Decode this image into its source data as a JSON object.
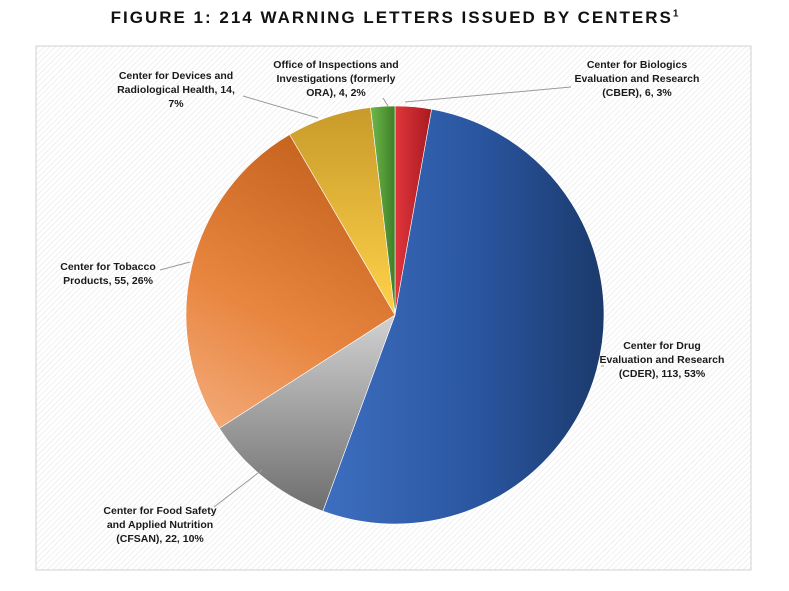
{
  "title": "FIGURE 1: 214 WARNING LETTERS ISSUED BY CENTERS",
  "title_footnote": "1",
  "chart_data": {
    "type": "pie",
    "total": 214,
    "slices": [
      {
        "name": "Center for Biologics Evaluation and Research (CBER)",
        "value": 6,
        "percent": 3,
        "label_lines": [
          "Center for Biologics",
          "Evaluation and Research",
          "(CBER), 6, 3%"
        ],
        "color": "#c8222a"
      },
      {
        "name": "Center for Drug Evaluation and Research (CDER)",
        "value": 113,
        "percent": 53,
        "label_lines": [
          "Center for Drug",
          "Evaluation and Research",
          "(CDER), 113, 53%"
        ],
        "color": "#2f5597"
      },
      {
        "name": "Center for Food Safety and Applied Nutrition (CFSAN)",
        "value": 22,
        "percent": 10,
        "label_lines": [
          "Center for Food Safety",
          "and Applied Nutrition",
          "(CFSAN), 22, 10%"
        ],
        "color": "#a6a6a6"
      },
      {
        "name": "Center for Tobacco Products",
        "value": 55,
        "percent": 26,
        "label_lines": [
          "Center for Tobacco",
          "Products, 55, 26%"
        ],
        "color": "#e07b39"
      },
      {
        "name": "Center for Devices and Radiological Health",
        "value": 14,
        "percent": 7,
        "label_lines": [
          "Center for Devices and",
          "Radiological Health, 14,",
          "7%"
        ],
        "color": "#e8b23a"
      },
      {
        "name": "Office of Inspections and Investigations (formerly ORA)",
        "value": 4,
        "percent": 2,
        "label_lines": [
          "Office of Inspections and",
          "Investigations (formerly",
          "ORA), 4, 2%"
        ],
        "color": "#5a9e3a"
      }
    ],
    "legend": "none",
    "grid": false
  }
}
